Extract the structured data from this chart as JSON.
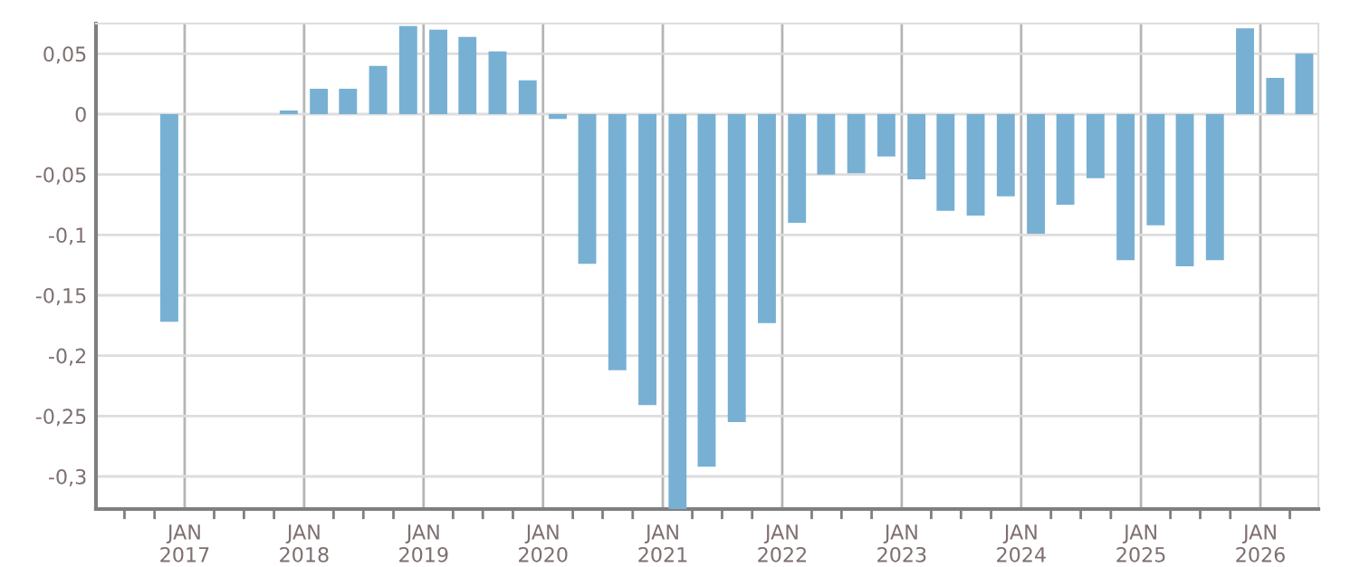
{
  "chart_data": {
    "type": "bar",
    "color": "#77b0d3",
    "x": [
      "2016-11-15",
      "2017-11-15",
      "2018-02-15",
      "2018-05-15",
      "2018-08-15",
      "2018-11-15",
      "2019-02-15",
      "2019-05-15",
      "2019-08-15",
      "2019-11-15",
      "2020-02-15",
      "2020-05-15",
      "2020-08-15",
      "2020-11-15",
      "2021-02-15",
      "2021-05-15",
      "2021-08-15",
      "2021-11-15",
      "2022-02-15",
      "2022-05-15",
      "2022-08-15",
      "2022-11-15",
      "2023-02-15",
      "2023-05-15",
      "2023-08-15",
      "2023-11-15",
      "2024-02-15",
      "2024-05-15",
      "2024-08-15",
      "2024-11-15",
      "2025-02-15",
      "2025-05-15",
      "2025-08-15",
      "2025-11-15",
      "2026-02-15",
      "2026-05-15"
    ],
    "values": [
      -0.172,
      0.003,
      0.021,
      0.021,
      0.04,
      0.073,
      0.07,
      0.064,
      0.052,
      0.028,
      -0.004,
      -0.124,
      -0.212,
      -0.241,
      -0.327,
      -0.292,
      -0.255,
      -0.173,
      -0.09,
      -0.05,
      -0.049,
      -0.035,
      -0.054,
      -0.08,
      -0.084,
      -0.068,
      -0.099,
      -0.075,
      -0.053,
      -0.121,
      -0.092,
      -0.126,
      -0.121,
      0.071,
      0.03,
      0.05
    ],
    "ylim": [
      -0.327,
      0.075
    ],
    "yticks": [
      {
        "value": 0.05,
        "label": "0,05"
      },
      0,
      {
        "value": -0.05,
        "label": "-0,05"
      },
      {
        "value": -0.1,
        "label": "-0,1"
      },
      {
        "value": -0.15,
        "label": "-0,15"
      },
      {
        "value": -0.2,
        "label": "-0,2"
      },
      {
        "value": -0.25,
        "label": "-0,25"
      },
      {
        "value": -0.3,
        "label": "-0,3"
      }
    ],
    "xlim": [
      "2016-04-05",
      "2026-06-27"
    ],
    "xticks": [
      {
        "value": "2016-07-01",
        "label": null
      },
      {
        "value": "2016-10-01",
        "label": null
      },
      {
        "value": "2017-01-01",
        "label": "JAN\n2017"
      },
      {
        "value": "2017-04-01",
        "label": null
      },
      {
        "value": "2017-07-01",
        "label": null
      },
      {
        "value": "2017-10-01",
        "label": null
      },
      {
        "value": "2018-01-01",
        "label": "JAN\n2018"
      },
      {
        "value": "2018-04-01",
        "label": null
      },
      {
        "value": "2018-07-01",
        "label": null
      },
      {
        "value": "2018-10-01",
        "label": null
      },
      {
        "value": "2019-01-01",
        "label": "JAN\n2019"
      },
      {
        "value": "2019-04-01",
        "label": null
      },
      {
        "value": "2019-07-01",
        "label": null
      },
      {
        "value": "2019-10-01",
        "label": null
      },
      {
        "value": "2020-01-01",
        "label": "JAN\n2020"
      },
      {
        "value": "2020-04-01",
        "label": null
      },
      {
        "value": "2020-07-01",
        "label": null
      },
      {
        "value": "2020-10-01",
        "label": null
      },
      {
        "value": "2021-01-01",
        "label": "JAN\n2021"
      },
      {
        "value": "2021-04-01",
        "label": null
      },
      {
        "value": "2021-07-01",
        "label": null
      },
      {
        "value": "2021-10-01",
        "label": null
      },
      {
        "value": "2022-01-01",
        "label": "JAN\n2022"
      },
      {
        "value": "2022-04-01",
        "label": null
      },
      {
        "value": "2022-07-01",
        "label": null
      },
      {
        "value": "2022-10-01",
        "label": null
      },
      {
        "value": "2023-01-01",
        "label": "JAN\n2023"
      },
      {
        "value": "2023-04-01",
        "label": null
      },
      {
        "value": "2023-07-01",
        "label": null
      },
      {
        "value": "2023-10-01",
        "label": null
      },
      {
        "value": "2024-01-01",
        "label": "JAN\n2024"
      },
      {
        "value": "2024-04-01",
        "label": null
      },
      {
        "value": "2024-07-01",
        "label": null
      },
      {
        "value": "2024-10-01",
        "label": null
      },
      {
        "value": "2025-01-01",
        "label": "JAN\n2025"
      },
      {
        "value": "2025-04-01",
        "label": null
      },
      {
        "value": "2025-07-01",
        "label": null
      },
      {
        "value": "2025-10-01",
        "label": null
      },
      {
        "value": "2026-01-01",
        "label": "JAN\n2026"
      },
      {
        "value": "2026-04-01",
        "label": null
      }
    ],
    "grid": true,
    "legend": false
  }
}
